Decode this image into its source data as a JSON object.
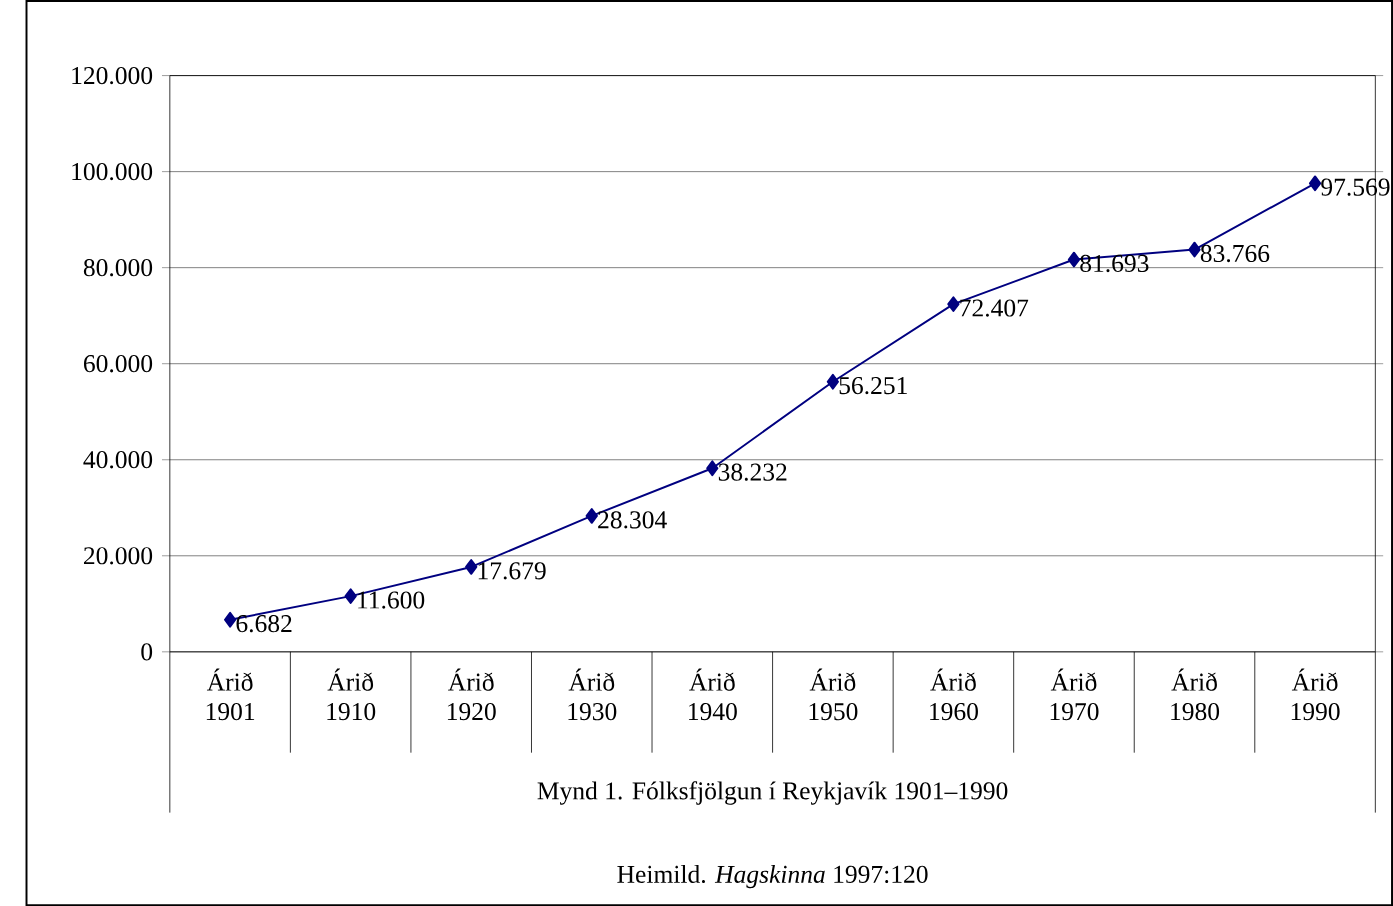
{
  "chart_data": {
    "type": "line",
    "xlabel": "Mynd 1. Fólksfjölgun í Reykjavík 1901–1990",
    "categories": [
      "Árið 1901",
      "Árið 1910",
      "Árið 1920",
      "Árið 1930",
      "Árið 1940",
      "Árið 1950",
      "Árið 1960",
      "Árið 1970",
      "Árið 1980",
      "Árið 1990"
    ],
    "series": [
      {
        "color": "#000080",
        "values": [
          6682,
          11600,
          17679,
          28304,
          38232,
          56251,
          72407,
          81693,
          83766,
          97569
        ],
        "value_labels": [
          "6.682",
          "11.600",
          "17.679",
          "28.304",
          "38.232",
          "56.251",
          "72.407",
          "81.693",
          "83.766",
          "97.569"
        ]
      }
    ],
    "ylim": [
      0,
      120000
    ],
    "yticks": [
      {
        "value": 0,
        "label": "0"
      },
      {
        "value": 20000,
        "label": "20.000"
      },
      {
        "value": 40000,
        "label": "40.000"
      },
      {
        "value": 60000,
        "label": "60.000"
      },
      {
        "value": 80000,
        "label": "80.000"
      },
      {
        "value": 100000,
        "label": "100.000"
      },
      {
        "value": 120000,
        "label": "120.000"
      }
    ],
    "grid": "y",
    "marker": "diamond",
    "line_style": "solid",
    "annotations": [
      "Heimild. *Hagskinna* 1997:120"
    ]
  }
}
